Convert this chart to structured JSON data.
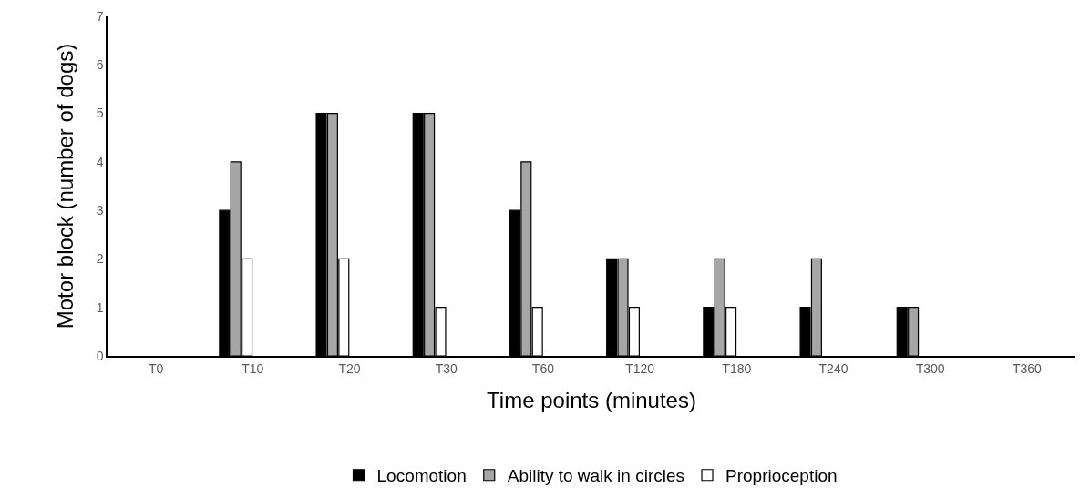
{
  "chart_data": {
    "type": "bar",
    "xlabel": "Time points (minutes)",
    "ylabel": "Motor block (number of dogs)",
    "categories": [
      "T0",
      "T10",
      "T20",
      "T30",
      "T60",
      "T120",
      "T180",
      "T240",
      "T300",
      "T360"
    ],
    "series": [
      {
        "name": "Locomotion",
        "color": "#000000",
        "values": [
          0,
          3,
          5,
          5,
          3,
          2,
          1,
          1,
          1,
          0
        ]
      },
      {
        "name": "Ability to walk in circles",
        "color": "#a6a6a6",
        "values": [
          0,
          4,
          5,
          5,
          4,
          2,
          2,
          2,
          1,
          0
        ]
      },
      {
        "name": "Proprioception",
        "color": "#ffffff",
        "values": [
          0,
          2,
          2,
          1,
          1,
          1,
          1,
          0,
          0,
          0
        ]
      }
    ],
    "ylim": [
      0,
      7
    ],
    "yticks": [
      0,
      1,
      2,
      3,
      4,
      5,
      6,
      7
    ],
    "grid": false,
    "legend": "bottom"
  }
}
